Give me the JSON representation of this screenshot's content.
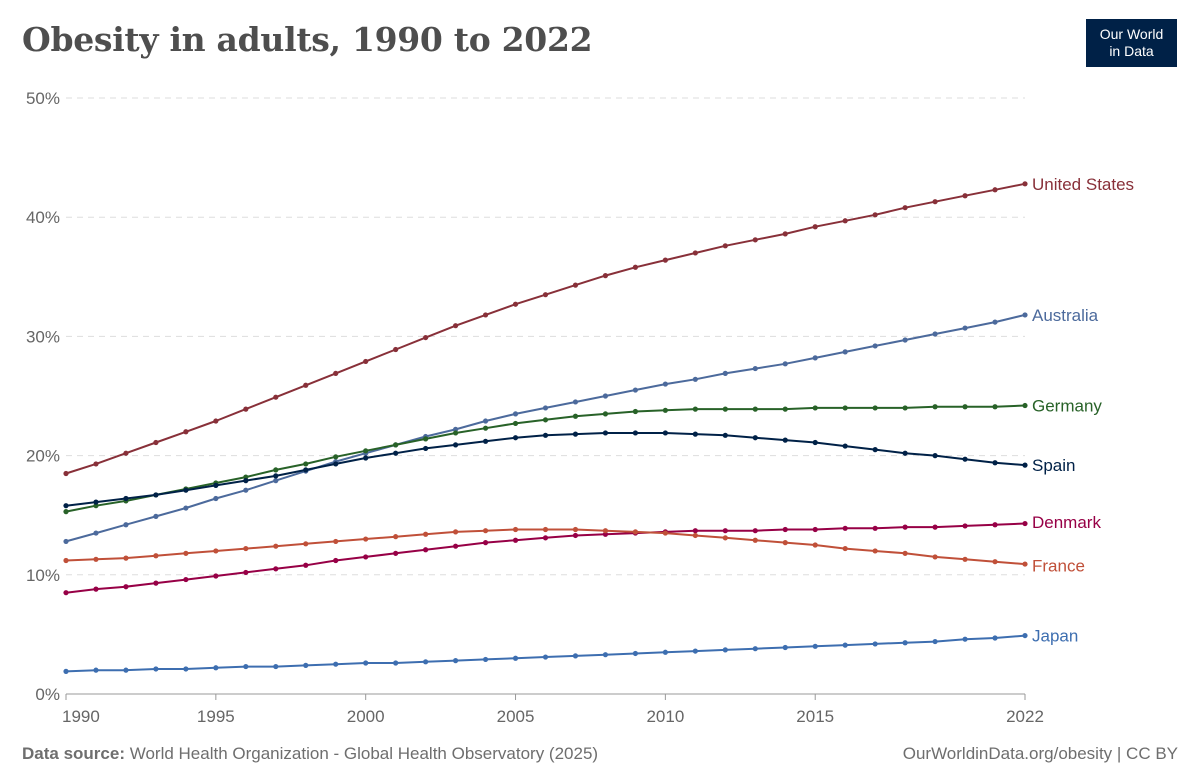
{
  "title": "Obesity in adults, 1990 to 2022",
  "logo": {
    "line1": "Our World",
    "line2": "in Data",
    "bg": "#002147"
  },
  "footer": {
    "source_label": "Data source:",
    "source_text": "World Health Organization - Global Health Observatory (2025)",
    "right_text": "OurWorldinData.org/obesity | CC BY"
  },
  "chart_data": {
    "type": "line",
    "title": "Obesity in adults, 1990 to 2022",
    "xlabel": "",
    "ylabel": "",
    "xlim": [
      1990,
      2022
    ],
    "ylim": [
      0,
      50
    ],
    "x_ticks": [
      {
        "value": 1990,
        "label": "1990"
      },
      {
        "value": 1995,
        "label": "1995"
      },
      {
        "value": 2000,
        "label": "2000"
      },
      {
        "value": 2005,
        "label": "2005"
      },
      {
        "value": 2010,
        "label": "2010"
      },
      {
        "value": 2015,
        "label": "2015"
      },
      {
        "value": 2022,
        "label": "2022"
      }
    ],
    "y_ticks": [
      {
        "value": 0,
        "label": "0%"
      },
      {
        "value": 10,
        "label": "10%"
      },
      {
        "value": 20,
        "label": "20%"
      },
      {
        "value": 30,
        "label": "30%"
      },
      {
        "value": 40,
        "label": "40%"
      },
      {
        "value": 50,
        "label": "50%"
      }
    ],
    "grid": "horizontal-dashed",
    "legend": "line-end labels",
    "x": [
      1990,
      1991,
      1992,
      1993,
      1994,
      1995,
      1996,
      1997,
      1998,
      1999,
      2000,
      2001,
      2002,
      2003,
      2004,
      2005,
      2006,
      2007,
      2008,
      2009,
      2010,
      2011,
      2012,
      2013,
      2014,
      2015,
      2016,
      2017,
      2018,
      2019,
      2020,
      2021,
      2022
    ],
    "series": [
      {
        "name": "United States",
        "color": "#883039",
        "values": [
          18.5,
          19.3,
          20.2,
          21.1,
          22.0,
          22.9,
          23.9,
          24.9,
          25.9,
          26.9,
          27.9,
          28.9,
          29.9,
          30.9,
          31.8,
          32.7,
          33.5,
          34.3,
          35.1,
          35.8,
          36.4,
          37.0,
          37.6,
          38.1,
          38.6,
          39.2,
          39.7,
          40.2,
          40.8,
          41.3,
          41.8,
          42.3,
          42.8
        ]
      },
      {
        "name": "Australia",
        "color": "#4c6a9c",
        "values": [
          12.8,
          13.5,
          14.2,
          14.9,
          15.6,
          16.4,
          17.1,
          17.9,
          18.7,
          19.5,
          20.2,
          20.9,
          21.6,
          22.2,
          22.9,
          23.5,
          24.0,
          24.5,
          25.0,
          25.5,
          26.0,
          26.4,
          26.9,
          27.3,
          27.7,
          28.2,
          28.7,
          29.2,
          29.7,
          30.2,
          30.7,
          31.2,
          31.8
        ]
      },
      {
        "name": "Germany",
        "color": "#286228",
        "values": [
          15.3,
          15.8,
          16.2,
          16.7,
          17.2,
          17.7,
          18.2,
          18.8,
          19.3,
          19.9,
          20.4,
          20.9,
          21.4,
          21.9,
          22.3,
          22.7,
          23.0,
          23.3,
          23.5,
          23.7,
          23.8,
          23.9,
          23.9,
          23.9,
          23.9,
          24.0,
          24.0,
          24.0,
          24.0,
          24.1,
          24.1,
          24.1,
          24.2
        ]
      },
      {
        "name": "Spain",
        "color": "#002147",
        "values": [
          15.8,
          16.1,
          16.4,
          16.7,
          17.1,
          17.5,
          17.9,
          18.3,
          18.8,
          19.3,
          19.8,
          20.2,
          20.6,
          20.9,
          21.2,
          21.5,
          21.7,
          21.8,
          21.9,
          21.9,
          21.9,
          21.8,
          21.7,
          21.5,
          21.3,
          21.1,
          20.8,
          20.5,
          20.2,
          20.0,
          19.7,
          19.4,
          19.2
        ]
      },
      {
        "name": "Denmark",
        "color": "#970046",
        "values": [
          8.5,
          8.8,
          9.0,
          9.3,
          9.6,
          9.9,
          10.2,
          10.5,
          10.8,
          11.2,
          11.5,
          11.8,
          12.1,
          12.4,
          12.7,
          12.9,
          13.1,
          13.3,
          13.4,
          13.5,
          13.6,
          13.7,
          13.7,
          13.7,
          13.8,
          13.8,
          13.9,
          13.9,
          14.0,
          14.0,
          14.1,
          14.2,
          14.3
        ]
      },
      {
        "name": "France",
        "color": "#c05039",
        "values": [
          11.2,
          11.3,
          11.4,
          11.6,
          11.8,
          12.0,
          12.2,
          12.4,
          12.6,
          12.8,
          13.0,
          13.2,
          13.4,
          13.6,
          13.7,
          13.8,
          13.8,
          13.8,
          13.7,
          13.6,
          13.5,
          13.3,
          13.1,
          12.9,
          12.7,
          12.5,
          12.2,
          12.0,
          11.8,
          11.5,
          11.3,
          11.1,
          10.9
        ]
      },
      {
        "name": "Japan",
        "color": "#3d6eb0",
        "values": [
          1.9,
          2.0,
          2.0,
          2.1,
          2.1,
          2.2,
          2.3,
          2.3,
          2.4,
          2.5,
          2.6,
          2.6,
          2.7,
          2.8,
          2.9,
          3.0,
          3.1,
          3.2,
          3.3,
          3.4,
          3.5,
          3.6,
          3.7,
          3.8,
          3.9,
          4.0,
          4.1,
          4.2,
          4.3,
          4.4,
          4.6,
          4.7,
          4.9
        ]
      }
    ]
  }
}
